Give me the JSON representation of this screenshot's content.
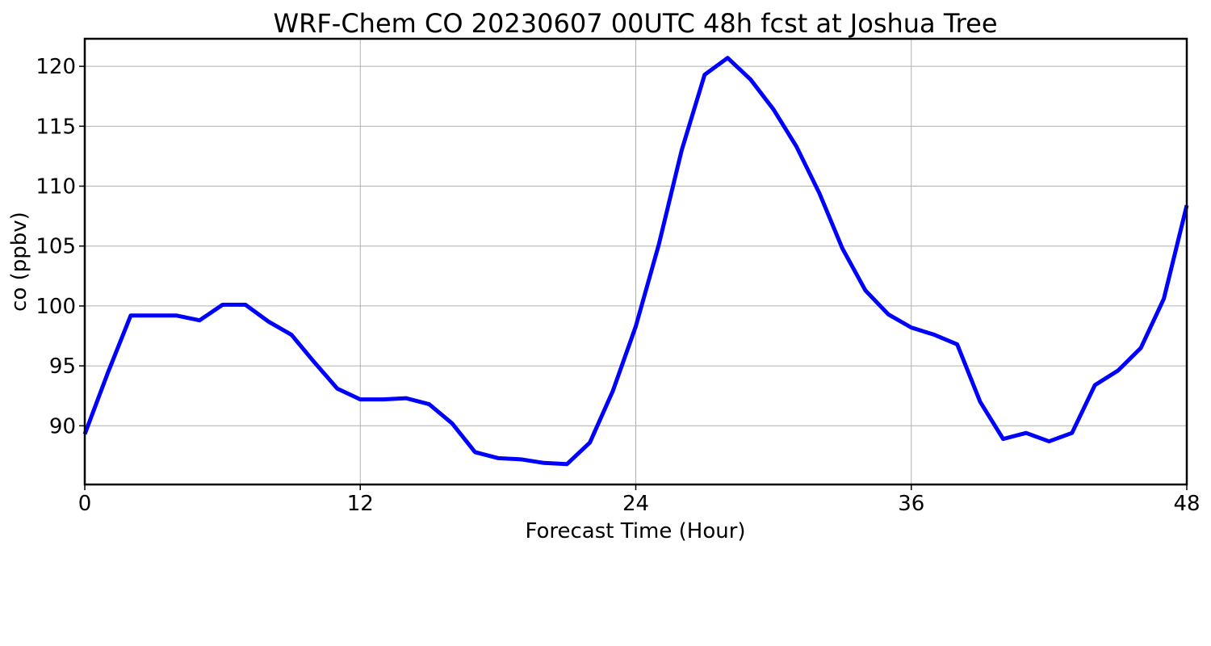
{
  "chart_data": {
    "type": "line",
    "title": "WRF-Chem CO  20230607 00UTC 48h fcst at Joshua Tree",
    "xlabel": "Forecast Time (Hour)",
    "ylabel": "co  (ppbv)",
    "xlim": [
      0,
      48
    ],
    "ylim": [
      85.1,
      122.3
    ],
    "xticks": [
      0,
      12,
      24,
      36,
      48
    ],
    "yticks": [
      90,
      95,
      100,
      105,
      110,
      115,
      120
    ],
    "grid": true,
    "colors": {
      "line": "#0000ff"
    },
    "series": [
      {
        "x": [
          0,
          1,
          2,
          3,
          4,
          5,
          6,
          7,
          8,
          9,
          10,
          11,
          12,
          13,
          14,
          15,
          16,
          17,
          18,
          19,
          20,
          21,
          22,
          23,
          24,
          25,
          26,
          27,
          28,
          29,
          30,
          31,
          32,
          33,
          34,
          35,
          36,
          37,
          38,
          39,
          40,
          41,
          42,
          43,
          44,
          45,
          46,
          47,
          48
        ],
        "values": [
          89.3,
          94.4,
          99.2,
          99.2,
          99.2,
          98.8,
          100.1,
          100.1,
          98.7,
          97.6,
          95.3,
          93.1,
          92.2,
          92.2,
          92.3,
          91.8,
          90.2,
          87.8,
          87.3,
          87.2,
          86.9,
          86.8,
          88.6,
          92.9,
          98.3,
          105.1,
          113.0,
          119.3,
          120.7,
          118.9,
          116.4,
          113.3,
          109.4,
          104.8,
          101.3,
          99.3,
          98.2,
          97.6,
          96.8,
          92.0,
          88.9,
          89.4,
          88.7,
          89.4,
          93.4,
          94.6,
          96.5,
          100.6,
          108.4
        ]
      }
    ]
  }
}
